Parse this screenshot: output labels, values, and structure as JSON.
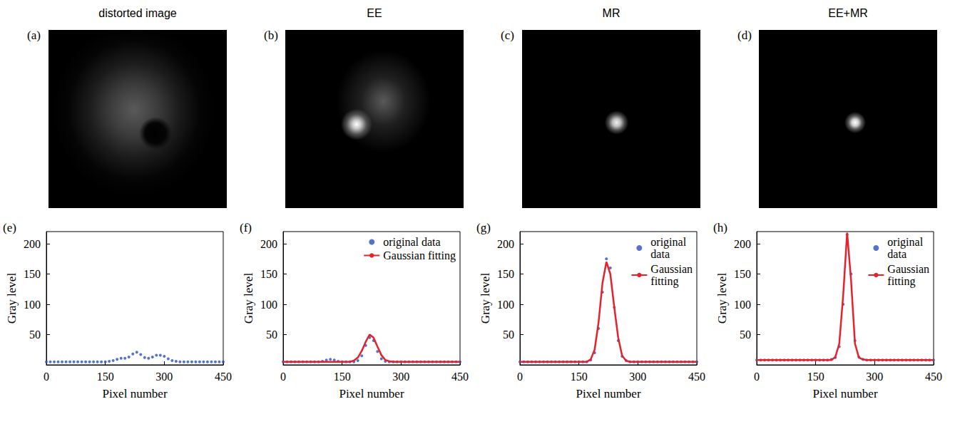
{
  "chart_data": [
    {
      "type": "scatter",
      "title": "distorted image",
      "image_panel": "(a)",
      "panel": "(e)",
      "x_label": "Pixel number",
      "y_label": "Gray level",
      "x": [
        0,
        10,
        20,
        30,
        40,
        50,
        60,
        70,
        80,
        90,
        100,
        110,
        120,
        130,
        140,
        150,
        160,
        170,
        180,
        190,
        200,
        210,
        220,
        230,
        240,
        250,
        260,
        270,
        280,
        290,
        300,
        310,
        320,
        330,
        340,
        350,
        360,
        370,
        380,
        390,
        400,
        410,
        420,
        430,
        440,
        450
      ],
      "xlim": [
        0,
        450
      ],
      "xticks": [
        0,
        150,
        300,
        450
      ],
      "ylim": [
        0,
        220
      ],
      "yticks": [
        50,
        100,
        150,
        200
      ],
      "series": [
        {
          "type": "scatter",
          "marker": "circle",
          "color": "#2a4fc0",
          "values": [
            5,
            5,
            5,
            5,
            5,
            5,
            5,
            5,
            5,
            5,
            5,
            5,
            5,
            5,
            5,
            5,
            6,
            7,
            9,
            11,
            11,
            13,
            18,
            21,
            17,
            12,
            11,
            13,
            16,
            16,
            14,
            10,
            7,
            6,
            5,
            5,
            5,
            5,
            5,
            5,
            5,
            5,
            5,
            5,
            5,
            5
          ]
        }
      ]
    },
    {
      "type": "scatter",
      "title": "EE",
      "image_panel": "(b)",
      "panel": "(f)",
      "x_label": "Pixel number",
      "y_label": "Gray level",
      "legend": "upper right",
      "x": [
        0,
        10,
        20,
        30,
        40,
        50,
        60,
        70,
        80,
        90,
        100,
        110,
        120,
        130,
        140,
        150,
        160,
        170,
        180,
        190,
        200,
        210,
        220,
        230,
        240,
        250,
        260,
        270,
        280,
        290,
        300,
        310,
        320,
        330,
        340,
        350,
        360,
        370,
        380,
        390,
        400,
        410,
        420,
        430,
        440,
        450
      ],
      "xlim": [
        0,
        450
      ],
      "xticks": [
        0,
        150,
        300,
        450
      ],
      "ylim": [
        0,
        220
      ],
      "yticks": [
        50,
        100,
        150,
        200
      ],
      "series": [
        {
          "name": "original data",
          "type": "scatter",
          "marker": "circle",
          "color": "#2a4fc0",
          "values": [
            5,
            5,
            5,
            5,
            5,
            5,
            5,
            5,
            5,
            5,
            6,
            8,
            9,
            8,
            6,
            5,
            5,
            5,
            5,
            7,
            15,
            32,
            45,
            40,
            22,
            10,
            6,
            5,
            5,
            5,
            5,
            5,
            5,
            5,
            5,
            5,
            5,
            5,
            5,
            5,
            5,
            5,
            5,
            5,
            5,
            5
          ]
        },
        {
          "name": "Gaussian fitting",
          "type": "line",
          "line_style": "solid",
          "color": "#e8202a",
          "values": [
            5,
            5,
            5,
            5,
            5,
            5,
            5,
            5,
            5,
            5,
            5,
            5,
            5,
            5,
            5,
            5,
            5,
            5,
            7,
            12,
            23,
            38,
            50,
            45,
            30,
            16,
            8,
            6,
            5,
            5,
            5,
            5,
            5,
            5,
            5,
            5,
            5,
            5,
            5,
            5,
            5,
            5,
            5,
            5,
            5,
            5
          ]
        }
      ]
    },
    {
      "type": "scatter",
      "title": "MR",
      "image_panel": "(c)",
      "panel": "(g)",
      "x_label": "Pixel number",
      "y_label": "Gray level",
      "legend": "upper right",
      "x": [
        0,
        10,
        20,
        30,
        40,
        50,
        60,
        70,
        80,
        90,
        100,
        110,
        120,
        130,
        140,
        150,
        160,
        170,
        180,
        190,
        200,
        210,
        220,
        230,
        240,
        250,
        260,
        270,
        280,
        290,
        300,
        310,
        320,
        330,
        340,
        350,
        360,
        370,
        380,
        390,
        400,
        410,
        420,
        430,
        440,
        450
      ],
      "xlim": [
        0,
        450
      ],
      "xticks": [
        0,
        150,
        300,
        450
      ],
      "ylim": [
        0,
        220
      ],
      "yticks": [
        50,
        100,
        150,
        200
      ],
      "series": [
        {
          "name": "original data",
          "type": "scatter",
          "marker": "circle",
          "color": "#2a4fc0",
          "values": [
            5,
            5,
            5,
            5,
            5,
            5,
            5,
            5,
            5,
            5,
            5,
            5,
            5,
            5,
            5,
            5,
            5,
            5,
            8,
            20,
            60,
            120,
            175,
            160,
            95,
            40,
            14,
            7,
            5,
            5,
            5,
            5,
            5,
            5,
            5,
            5,
            5,
            5,
            5,
            5,
            5,
            5,
            5,
            5,
            5,
            5
          ]
        },
        {
          "name": "Gaussian fitting",
          "type": "line",
          "line_style": "solid",
          "color": "#e8202a",
          "values": [
            5,
            5,
            5,
            5,
            5,
            5,
            5,
            5,
            5,
            5,
            5,
            5,
            5,
            5,
            5,
            5,
            5,
            5,
            9,
            25,
            70,
            135,
            170,
            150,
            95,
            45,
            15,
            7,
            5,
            5,
            5,
            5,
            5,
            5,
            5,
            5,
            5,
            5,
            5,
            5,
            5,
            5,
            5,
            5,
            5,
            5
          ]
        }
      ]
    },
    {
      "type": "scatter",
      "title": "EE+MR",
      "image_panel": "(d)",
      "panel": "(h)",
      "x_label": "Pixel number",
      "y_label": "Gray level",
      "legend": "upper right",
      "x": [
        0,
        10,
        20,
        30,
        40,
        50,
        60,
        70,
        80,
        90,
        100,
        110,
        120,
        130,
        140,
        150,
        160,
        170,
        180,
        190,
        200,
        210,
        220,
        230,
        240,
        250,
        260,
        270,
        280,
        290,
        300,
        310,
        320,
        330,
        340,
        350,
        360,
        370,
        380,
        390,
        400,
        410,
        420,
        430,
        440,
        450
      ],
      "xlim": [
        0,
        450
      ],
      "xticks": [
        0,
        150,
        300,
        450
      ],
      "ylim": [
        0,
        220
      ],
      "yticks": [
        50,
        100,
        150,
        200
      ],
      "series": [
        {
          "name": "original data",
          "type": "scatter",
          "marker": "circle",
          "color": "#2a4fc0",
          "values": [
            8,
            8,
            8,
            8,
            8,
            8,
            8,
            8,
            8,
            8,
            8,
            8,
            8,
            8,
            8,
            8,
            8,
            8,
            8,
            9,
            12,
            30,
            100,
            215,
            150,
            40,
            13,
            9,
            8,
            8,
            8,
            8,
            8,
            8,
            8,
            8,
            8,
            8,
            8,
            8,
            8,
            8,
            8,
            8,
            8,
            8
          ]
        },
        {
          "name": "Gaussian fitting",
          "type": "line",
          "line_style": "solid",
          "color": "#e8202a",
          "values": [
            8,
            8,
            8,
            8,
            8,
            8,
            8,
            8,
            8,
            8,
            8,
            8,
            8,
            8,
            8,
            8,
            8,
            8,
            8,
            8,
            13,
            35,
            115,
            218,
            140,
            35,
            12,
            9,
            8,
            8,
            8,
            8,
            8,
            8,
            8,
            8,
            8,
            8,
            8,
            8,
            8,
            8,
            8,
            8,
            8,
            8
          ]
        }
      ]
    }
  ]
}
